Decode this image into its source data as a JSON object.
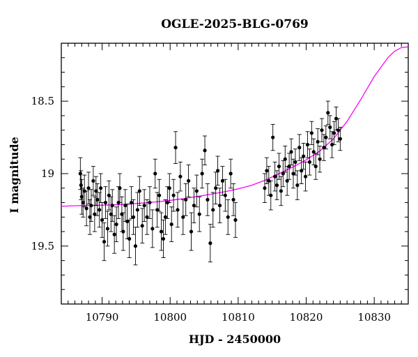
{
  "chart_data": {
    "type": "scatter",
    "title": "OGLE-2025-BLG-0769",
    "xlabel": "HJD - 2450000",
    "ylabel": "I magnitude",
    "xlim": [
      10784,
      10835
    ],
    "ylim": [
      19.9,
      18.1
    ],
    "y_inverted": true,
    "x_ticks": [
      10790,
      10800,
      10810,
      10820,
      10830
    ],
    "y_ticks": [
      18.5,
      19,
      19.5
    ],
    "x_tick_labels": [
      "10790",
      "10800",
      "10810",
      "10820",
      "10830"
    ],
    "y_tick_labels": [
      "18.5",
      "19",
      "19.5"
    ],
    "grid": false,
    "colors": {
      "points": "#000000",
      "model": "#ff00ff"
    },
    "series": [
      {
        "type": "scatter",
        "x": [
          10786.8,
          10786.9,
          10787.0,
          10787.2,
          10787.4,
          10787.7,
          10788.0,
          10788.2,
          10788.4,
          10788.7,
          10788.9,
          10789.1,
          10789.3,
          10789.6,
          10789.8,
          10790.0,
          10790.3,
          10790.5,
          10790.8,
          10791.0,
          10791.3,
          10791.5,
          10791.8,
          10792.1,
          10792.4,
          10792.6,
          10792.9,
          10793.1,
          10793.4,
          10793.7,
          10794.0,
          10794.3,
          10794.6,
          10794.9,
          10795.2,
          10795.5,
          10795.9,
          10796.2,
          10796.6,
          10797.0,
          10797.4,
          10797.8,
          10798.1,
          10798.4,
          10798.7,
          10799.0,
          10799.3,
          10799.6,
          10799.9,
          10800.2,
          10800.5,
          10800.8,
          10801.1,
          10801.5,
          10801.9,
          10802.3,
          10802.7,
          10803.1,
          10803.5,
          10803.9,
          10804.3,
          10804.7,
          10805.1,
          10805.5,
          10805.9,
          10806.3,
          10806.7,
          10807.0,
          10807.3,
          10807.7,
          10808.1,
          10808.5,
          10808.9,
          10809.3,
          10809.6,
          10813.9,
          10814.2,
          10814.5,
          10814.8,
          10815.1,
          10815.4,
          10815.7,
          10816.0,
          10816.3,
          10816.6,
          10816.9,
          10817.2,
          10817.5,
          10817.8,
          10818.1,
          10818.4,
          10818.7,
          10819.0,
          10819.3,
          10819.6,
          10819.9,
          10820.2,
          10820.5,
          10820.8,
          10821.1,
          10821.4,
          10821.7,
          10822.0,
          10822.3,
          10822.6,
          10822.9,
          10823.2,
          10823.5,
          10823.8,
          10824.1,
          10824.4,
          10824.7,
          10825.0
        ],
        "y": [
          19.0,
          19.08,
          19.16,
          19.2,
          19.12,
          19.24,
          19.1,
          19.3,
          19.22,
          19.05,
          19.28,
          19.12,
          19.18,
          19.25,
          19.1,
          19.32,
          19.47,
          19.2,
          19.38,
          19.15,
          19.28,
          19.22,
          19.42,
          19.35,
          19.2,
          19.1,
          19.28,
          19.4,
          19.22,
          19.33,
          19.45,
          19.2,
          19.3,
          19.5,
          19.25,
          19.12,
          19.36,
          19.22,
          19.3,
          19.2,
          19.38,
          19.0,
          19.25,
          19.15,
          19.4,
          19.45,
          19.3,
          19.2,
          19.1,
          19.35,
          19.15,
          18.82,
          19.25,
          19.02,
          19.3,
          19.18,
          19.05,
          19.4,
          19.22,
          19.12,
          19.28,
          19.0,
          18.84,
          19.18,
          19.48,
          19.25,
          19.1,
          18.98,
          19.22,
          19.05,
          19.15,
          19.3,
          19.0,
          19.18,
          19.32,
          19.1,
          18.98,
          19.05,
          19.15,
          18.75,
          19.02,
          19.08,
          18.95,
          19.12,
          19.0,
          18.9,
          19.05,
          18.95,
          18.85,
          19.0,
          18.92,
          19.08,
          18.82,
          18.98,
          18.88,
          19.02,
          18.8,
          18.92,
          18.72,
          18.85,
          18.95,
          18.78,
          18.9,
          18.7,
          18.82,
          18.75,
          18.58,
          18.68,
          18.8,
          18.72,
          18.62,
          18.7,
          18.76
        ],
        "yerr": [
          0.11,
          0.1,
          0.12,
          0.1,
          0.11,
          0.12,
          0.11,
          0.12,
          0.11,
          0.1,
          0.12,
          0.1,
          0.11,
          0.12,
          0.1,
          0.12,
          0.13,
          0.11,
          0.12,
          0.1,
          0.12,
          0.11,
          0.13,
          0.12,
          0.11,
          0.1,
          0.12,
          0.13,
          0.11,
          0.12,
          0.13,
          0.11,
          0.12,
          0.13,
          0.12,
          0.1,
          0.12,
          0.11,
          0.12,
          0.11,
          0.13,
          0.1,
          0.12,
          0.11,
          0.13,
          0.13,
          0.12,
          0.11,
          0.1,
          0.12,
          0.11,
          0.11,
          0.12,
          0.1,
          0.12,
          0.11,
          0.11,
          0.13,
          0.12,
          0.11,
          0.12,
          0.1,
          0.1,
          0.11,
          0.13,
          0.12,
          0.11,
          0.1,
          0.12,
          0.1,
          0.11,
          0.12,
          0.1,
          0.11,
          0.12,
          0.1,
          0.09,
          0.1,
          0.1,
          0.09,
          0.1,
          0.1,
          0.09,
          0.1,
          0.09,
          0.09,
          0.1,
          0.09,
          0.09,
          0.1,
          0.09,
          0.1,
          0.09,
          0.09,
          0.09,
          0.1,
          0.09,
          0.09,
          0.08,
          0.09,
          0.09,
          0.09,
          0.09,
          0.08,
          0.09,
          0.08,
          0.08,
          0.08,
          0.09,
          0.08,
          0.08,
          0.08,
          0.08
        ]
      },
      {
        "type": "line",
        "x": [
          10784,
          10786,
          10788,
          10790,
          10792,
          10794,
          10796,
          10798,
          10800,
          10802,
          10804,
          10806,
          10808,
          10810,
          10812,
          10814,
          10816,
          10818,
          10820,
          10822,
          10824,
          10826,
          10828,
          10830,
          10832,
          10833,
          10834,
          10835
        ],
        "y": [
          19.225,
          19.222,
          19.22,
          19.218,
          19.215,
          19.21,
          19.203,
          19.195,
          19.185,
          19.172,
          19.158,
          19.142,
          19.125,
          19.105,
          19.08,
          19.045,
          19.0,
          18.955,
          18.905,
          18.845,
          18.76,
          18.64,
          18.49,
          18.33,
          18.2,
          18.155,
          18.13,
          18.125
        ]
      }
    ]
  }
}
